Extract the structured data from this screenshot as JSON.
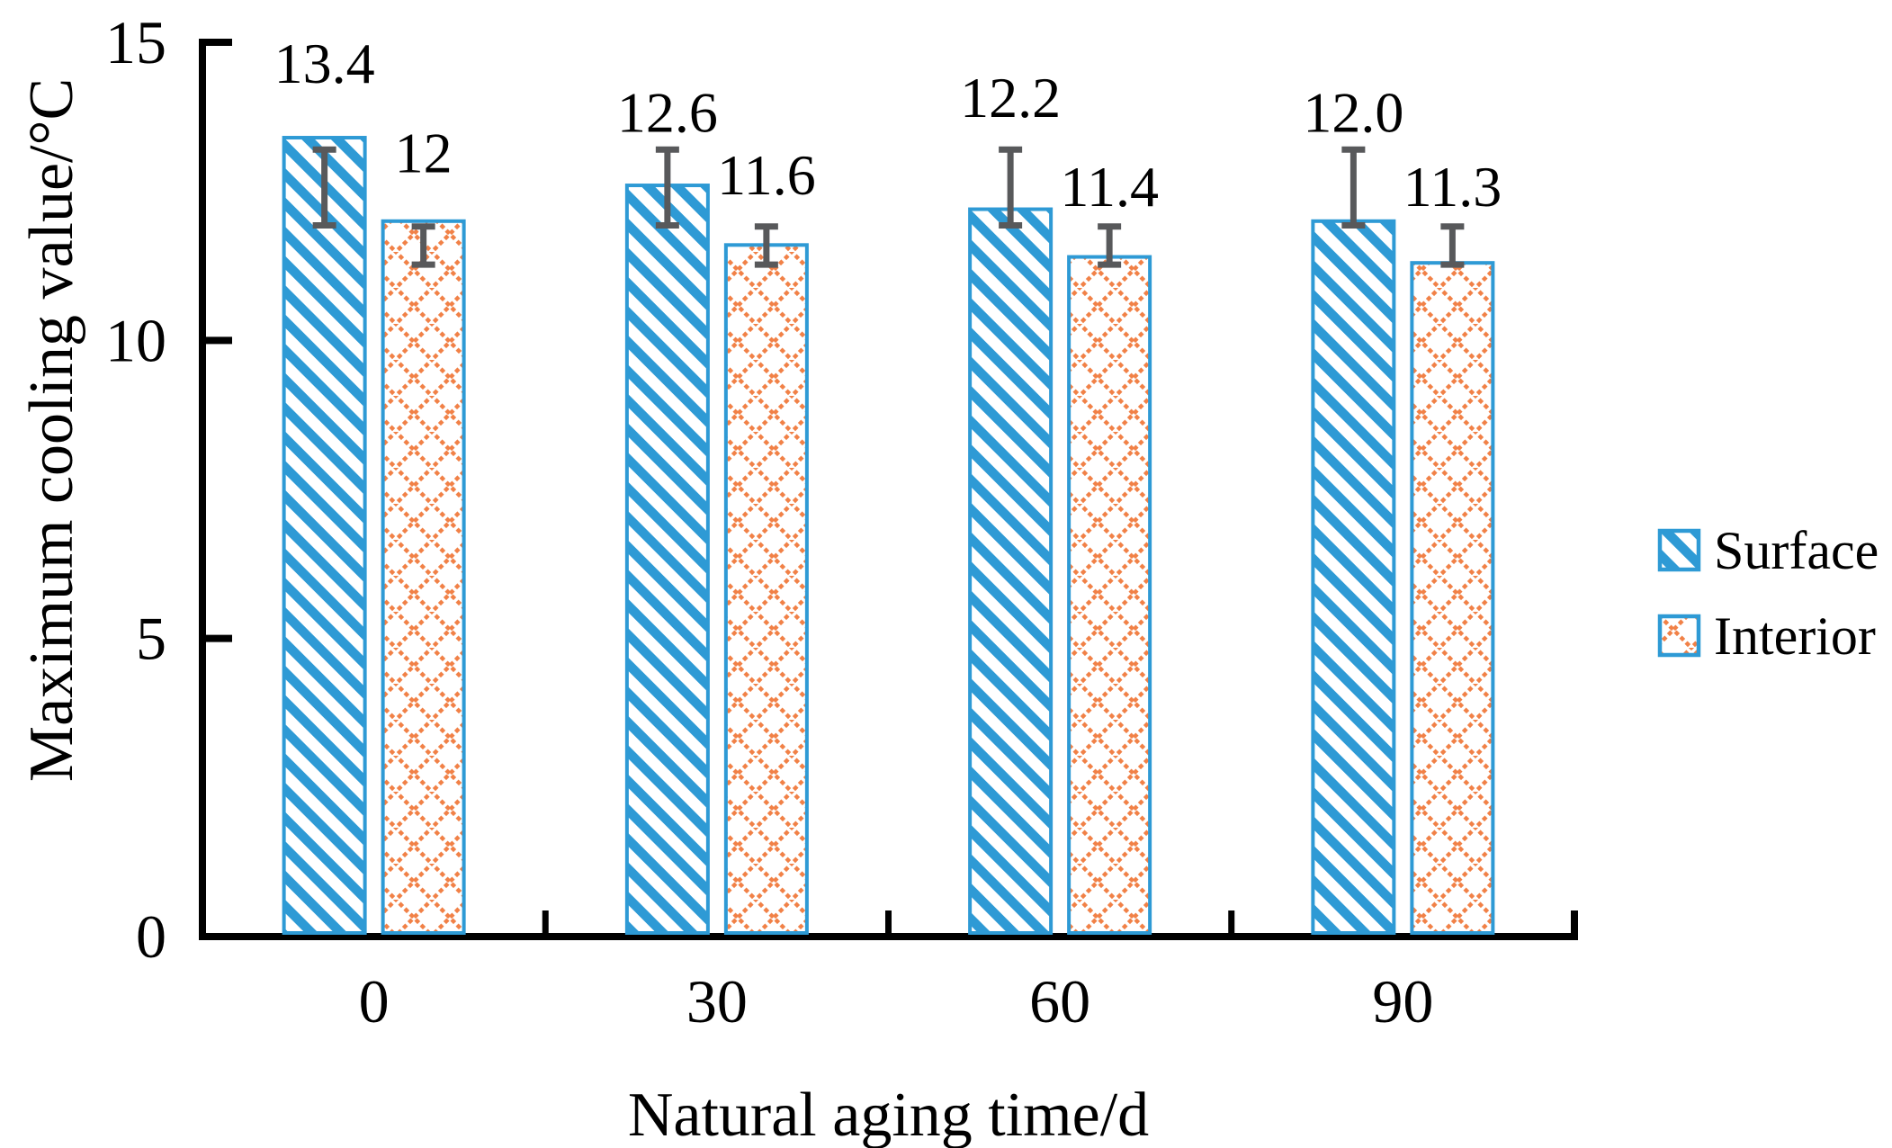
{
  "chart_data": {
    "type": "bar",
    "title": "",
    "xlabel": "Natural aging time/d",
    "ylabel": "Maximum cooling value/°C",
    "categories": [
      "0",
      "30",
      "60",
      "90"
    ],
    "series": [
      {
        "name": "Surface",
        "values": [
          13.4,
          12.6,
          12.2,
          12.0
        ],
        "bar_labels": [
          "13.4",
          "12.6",
          "12.2",
          "12.0"
        ],
        "label_baseline_values": [
          14.32,
          13.5,
          13.75,
          13.5
        ],
        "error_bar_span": [
          11.93,
          13.2
        ],
        "pattern": "diagonal-stripes",
        "pattern_color": "#2E9AD5",
        "border_color": "#2E9AD5"
      },
      {
        "name": "Interior",
        "values": [
          12,
          11.6,
          11.4,
          11.3
        ],
        "bar_labels": [
          "12",
          "11.6",
          "11.4",
          "11.3"
        ],
        "label_baseline_values": [
          12.82,
          12.45,
          12.25,
          12.25
        ],
        "error_bar_span": [
          11.27,
          11.91
        ],
        "pattern": "cross-hatch",
        "pattern_color": "#F18147",
        "border_color": "#2E9AD5"
      }
    ],
    "ylim": [
      0,
      15
    ],
    "yticks": [
      0,
      5,
      10,
      15
    ],
    "ytick_labels": [
      "0",
      "5",
      "10",
      "15"
    ],
    "grid": false,
    "legend_position": "right",
    "legend": [
      "Surface",
      "Interior"
    ],
    "colors": {
      "error_bar": "#58595B",
      "axis": "#000000",
      "text": "#000000",
      "background": "#ffffff"
    }
  }
}
